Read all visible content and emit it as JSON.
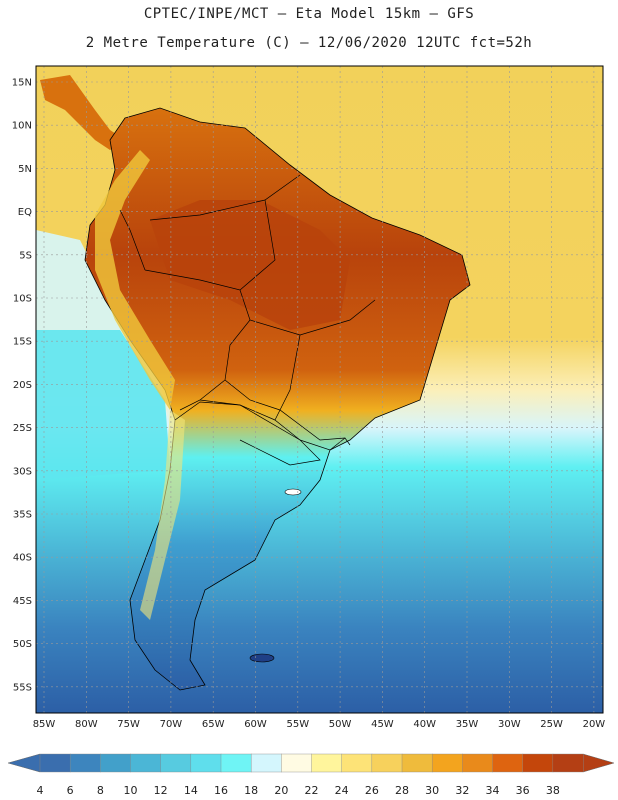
{
  "header": {
    "line1": "CPTEC/INPE/MCT –  Eta Model 15km – GFS",
    "line2": "2 Metre Temperature (C) – 12/06/2020 12UTC fct=52h"
  },
  "map": {
    "lat_labels": [
      "15N",
      "10N",
      "5N",
      "EQ",
      "5S",
      "10S",
      "15S",
      "20S",
      "25S",
      "30S",
      "35S",
      "40S",
      "45S",
      "50S",
      "55S"
    ],
    "lon_labels": [
      "85W",
      "80W",
      "75W",
      "70W",
      "65W",
      "60W",
      "55W",
      "50W",
      "45W",
      "40W",
      "35W",
      "30W",
      "25W",
      "20W"
    ],
    "colors": {
      "ocean_deep": "#2c5fa6",
      "ocean_mid": "#4dbcd8",
      "ocean_cyan": "#5ef0f0",
      "ocean_light": "#d6f6fc",
      "ocean_warm": "#f2cc4e",
      "land_hot": "#b8430c",
      "land_warm": "#d8710e",
      "land_mild": "#f0b020"
    }
  },
  "colorbar": {
    "ticks": [
      "4",
      "6",
      "8",
      "10",
      "12",
      "14",
      "16",
      "18",
      "20",
      "22",
      "24",
      "26",
      "28",
      "30",
      "32",
      "34",
      "36",
      "38"
    ],
    "colors": [
      "#3a6eae",
      "#3d85be",
      "#42a0ca",
      "#4bb6d6",
      "#57cbe0",
      "#5fdeec",
      "#6ff4f5",
      "#d4f6fd",
      "#fffbe3",
      "#fff59c",
      "#fde377",
      "#f7d15c",
      "#efbb3c",
      "#f3a41e",
      "#e98a1b",
      "#de6410",
      "#c4460b",
      "#b43f14"
    ]
  }
}
